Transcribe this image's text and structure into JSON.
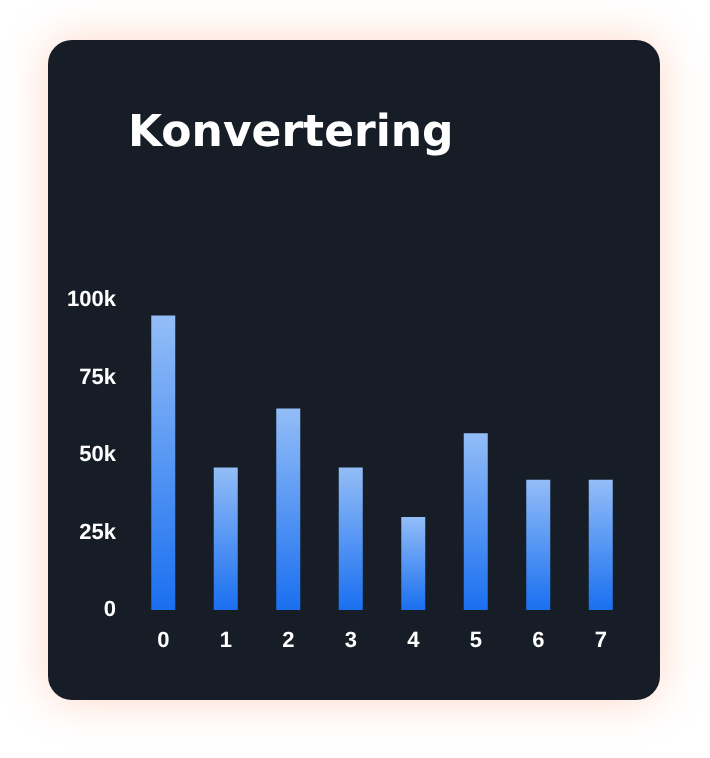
{
  "chart_data": {
    "type": "bar",
    "title": "Konvertering",
    "categories": [
      "0",
      "1",
      "2",
      "3",
      "4",
      "5",
      "6",
      "7"
    ],
    "values": [
      95000,
      46000,
      65000,
      46000,
      30000,
      57000,
      42000,
      42000
    ],
    "color": "#1a6ff0",
    "ylim": [
      0,
      100000
    ],
    "yticks": [
      {
        "value": 0,
        "label": "0"
      },
      {
        "value": 25000,
        "label": "25k"
      },
      {
        "value": 50000,
        "label": "50k"
      },
      {
        "value": 75000,
        "label": "75k"
      },
      {
        "value": 100000,
        "label": "100k"
      }
    ],
    "grid": false
  }
}
